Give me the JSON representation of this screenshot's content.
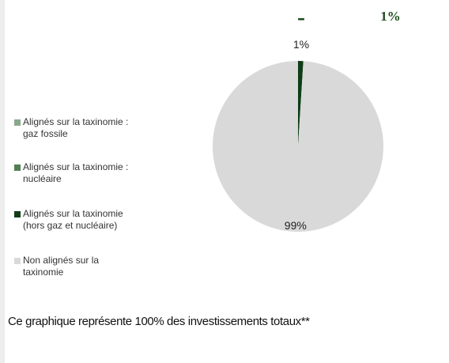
{
  "chart_data": {
    "type": "pie",
    "annotations": [
      "-",
      "1%"
    ],
    "categories": [
      "Alignés sur la taxinomie :\ngaz fossile",
      "Alignés sur la taxinomie :\nnucléaire",
      "Alignés sur la taxinomie\n(hors gaz et nucléaire)",
      "Non alignés sur la\ntaxinomie"
    ],
    "values": [
      0,
      0,
      1,
      99
    ],
    "value_labels": [
      null,
      null,
      "1%",
      "99%"
    ],
    "colors": [
      "#8aa88a",
      "#4f7f55",
      "#0f3d17",
      "#d9d9d9"
    ],
    "note": "Ce graphique représente 100% des investissements totaux**"
  }
}
